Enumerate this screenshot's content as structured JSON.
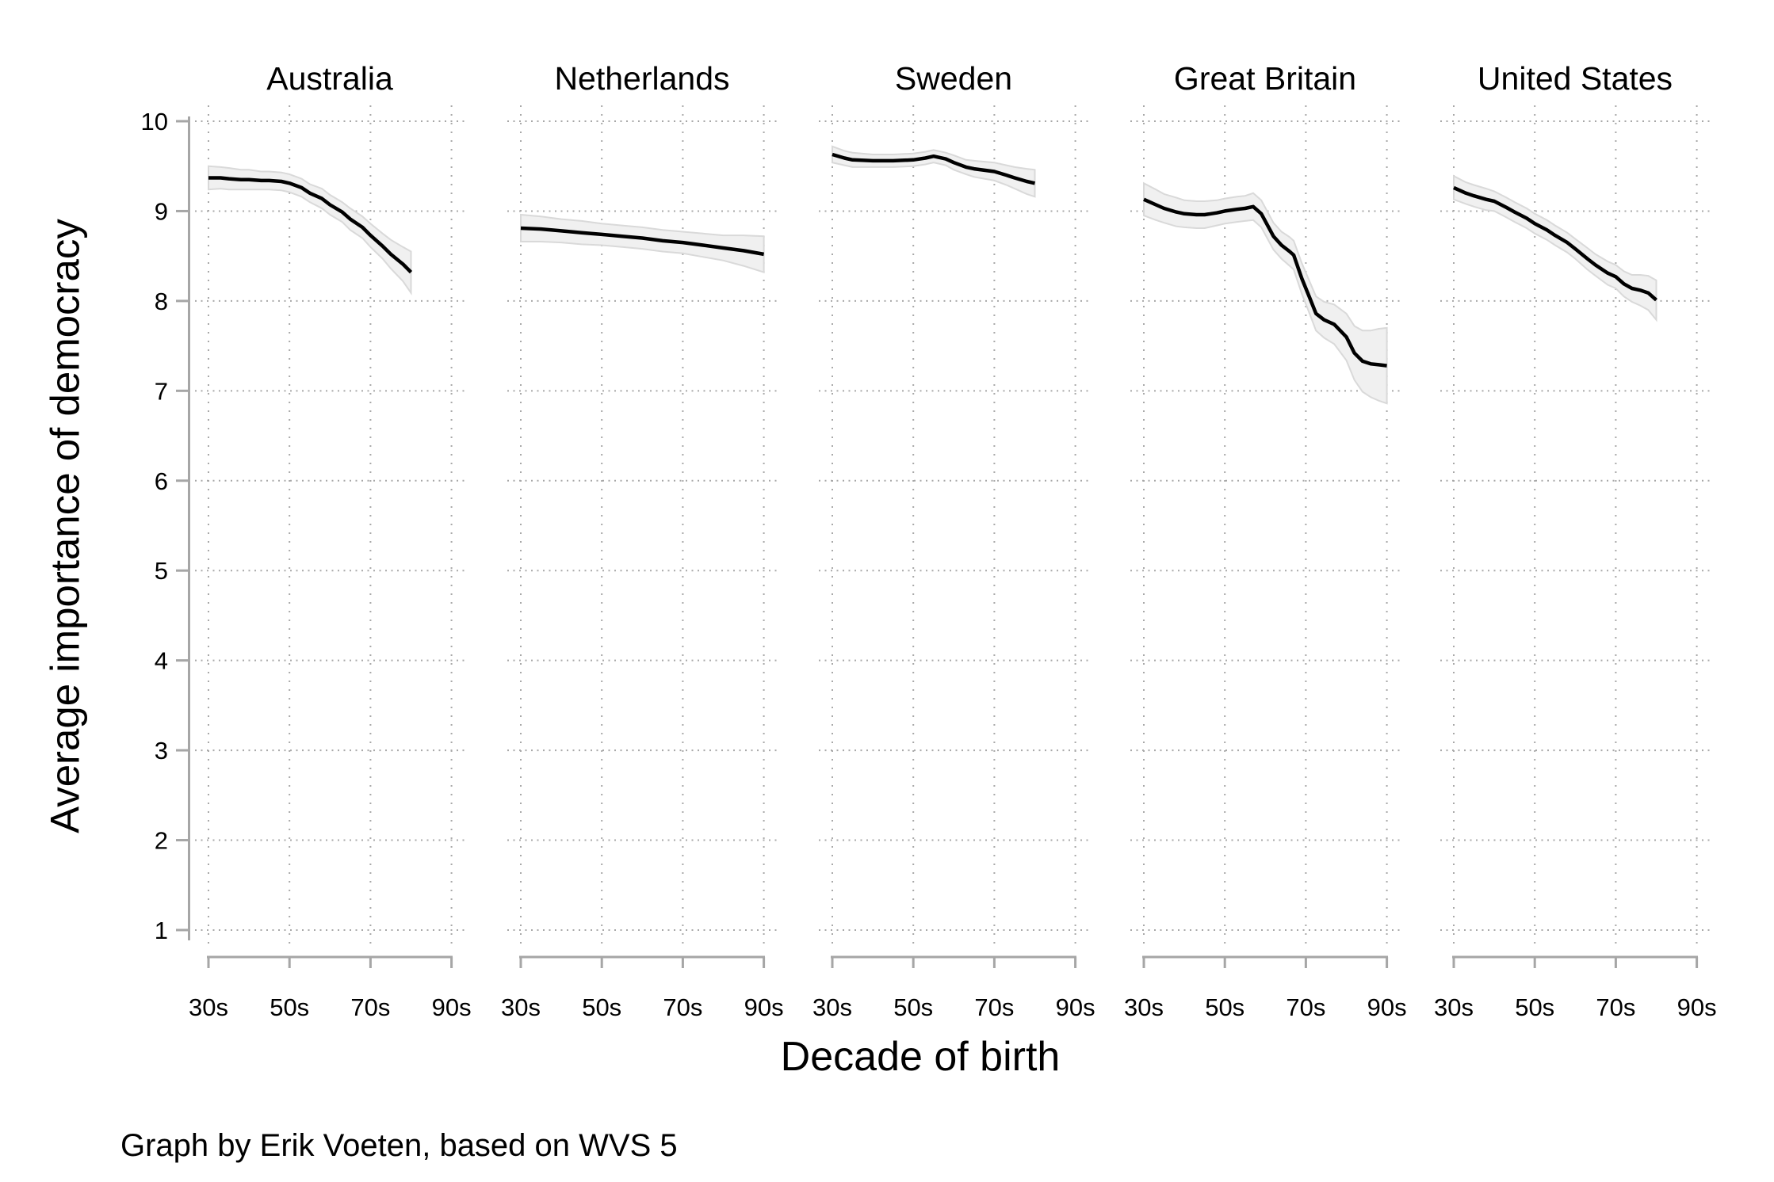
{
  "figure": {
    "y_axis_title": "Average importance of democracy",
    "x_axis_title": "Decade of birth",
    "caption": "Graph by Erik Voeten, based on WVS 5",
    "y_tick_labels": [
      "10",
      "9",
      "8",
      "7",
      "6",
      "5",
      "4",
      "3",
      "2",
      "1"
    ],
    "x_tick_labels": [
      "30s",
      "50s",
      "70s",
      "90s"
    ]
  },
  "colors": {
    "line": "#000000",
    "band_fill": "#f0f0f0",
    "band_stroke": "#d9d9d9",
    "axis": "#a6a6a6",
    "grid": "#a8a8a8",
    "text": "#000000"
  },
  "chart_data": {
    "type": "line",
    "layout_hint": "five small-multiple panels sharing one y axis; dotted grid; gray 95% confidence band around each black line",
    "title": "",
    "xlabel": "Decade of birth",
    "ylabel": "Average importance of democracy",
    "ylim": [
      1,
      10
    ],
    "y_ticks": [
      10,
      9,
      8,
      7,
      6,
      5,
      4,
      3,
      2,
      1
    ],
    "x_ticks": [
      30,
      50,
      70,
      90
    ],
    "x_tick_labels": [
      "30s",
      "50s",
      "70s",
      "90s"
    ],
    "grid": "dotted, horizontal at each integer 1-10, vertical at 30s/50s/70s/90s",
    "point_format": "[decade_of_birth, mean_value, ci_halfwidth]",
    "panels": [
      {
        "title": "Australia",
        "points": [
          [
            30,
            9.37,
            0.13
          ],
          [
            33,
            9.37,
            0.12
          ],
          [
            35,
            9.36,
            0.12
          ],
          [
            38,
            9.35,
            0.11
          ],
          [
            40,
            9.35,
            0.11
          ],
          [
            43,
            9.34,
            0.1
          ],
          [
            45,
            9.34,
            0.1
          ],
          [
            48,
            9.33,
            0.1
          ],
          [
            50,
            9.31,
            0.1
          ],
          [
            53,
            9.26,
            0.1
          ],
          [
            55,
            9.2,
            0.1
          ],
          [
            58,
            9.14,
            0.11
          ],
          [
            60,
            9.07,
            0.11
          ],
          [
            63,
            8.99,
            0.11
          ],
          [
            65,
            8.91,
            0.12
          ],
          [
            68,
            8.82,
            0.12
          ],
          [
            70,
            8.73,
            0.13
          ],
          [
            73,
            8.61,
            0.14
          ],
          [
            75,
            8.52,
            0.16
          ],
          [
            78,
            8.41,
            0.19
          ],
          [
            80,
            8.32,
            0.23
          ]
        ]
      },
      {
        "title": "Netherlands",
        "points": [
          [
            30,
            8.81,
            0.15
          ],
          [
            35,
            8.8,
            0.14
          ],
          [
            40,
            8.78,
            0.13
          ],
          [
            45,
            8.76,
            0.13
          ],
          [
            50,
            8.74,
            0.12
          ],
          [
            55,
            8.72,
            0.12
          ],
          [
            60,
            8.7,
            0.12
          ],
          [
            65,
            8.67,
            0.12
          ],
          [
            70,
            8.65,
            0.12
          ],
          [
            75,
            8.62,
            0.13
          ],
          [
            80,
            8.59,
            0.14
          ],
          [
            85,
            8.56,
            0.17
          ],
          [
            90,
            8.52,
            0.2
          ]
        ]
      },
      {
        "title": "Sweden",
        "points": [
          [
            30,
            9.63,
            0.09
          ],
          [
            33,
            9.59,
            0.08
          ],
          [
            35,
            9.57,
            0.08
          ],
          [
            40,
            9.56,
            0.07
          ],
          [
            45,
            9.56,
            0.07
          ],
          [
            50,
            9.57,
            0.07
          ],
          [
            53,
            9.59,
            0.07
          ],
          [
            55,
            9.61,
            0.07
          ],
          [
            58,
            9.58,
            0.07
          ],
          [
            60,
            9.54,
            0.08
          ],
          [
            63,
            9.49,
            0.08
          ],
          [
            65,
            9.47,
            0.09
          ],
          [
            70,
            9.44,
            0.1
          ],
          [
            73,
            9.4,
            0.11
          ],
          [
            75,
            9.37,
            0.12
          ],
          [
            78,
            9.33,
            0.14
          ],
          [
            80,
            9.31,
            0.15
          ]
        ]
      },
      {
        "title": "Great Britain",
        "points": [
          [
            30,
            9.13,
            0.18
          ],
          [
            33,
            9.07,
            0.17
          ],
          [
            35,
            9.03,
            0.16
          ],
          [
            38,
            8.99,
            0.16
          ],
          [
            40,
            8.97,
            0.15
          ],
          [
            43,
            8.96,
            0.15
          ],
          [
            45,
            8.96,
            0.15
          ],
          [
            48,
            8.98,
            0.14
          ],
          [
            50,
            9.0,
            0.14
          ],
          [
            53,
            9.02,
            0.14
          ],
          [
            55,
            9.03,
            0.14
          ],
          [
            57,
            9.05,
            0.15
          ],
          [
            59,
            8.97,
            0.15
          ],
          [
            62,
            8.72,
            0.15
          ],
          [
            64,
            8.62,
            0.15
          ],
          [
            66,
            8.55,
            0.16
          ],
          [
            67,
            8.51,
            0.16
          ],
          [
            69,
            8.25,
            0.17
          ],
          [
            71,
            8.03,
            0.18
          ],
          [
            72.5,
            7.86,
            0.19
          ],
          [
            74.5,
            7.79,
            0.2
          ],
          [
            77,
            7.74,
            0.22
          ],
          [
            80,
            7.6,
            0.26
          ],
          [
            82,
            7.42,
            0.3
          ],
          [
            84,
            7.33,
            0.34
          ],
          [
            86,
            7.3,
            0.37
          ],
          [
            88,
            7.29,
            0.4
          ],
          [
            90,
            7.28,
            0.42
          ]
        ]
      },
      {
        "title": "United States",
        "points": [
          [
            30,
            9.26,
            0.13
          ],
          [
            33,
            9.2,
            0.12
          ],
          [
            35,
            9.17,
            0.12
          ],
          [
            38,
            9.13,
            0.12
          ],
          [
            40,
            9.11,
            0.11
          ],
          [
            43,
            9.04,
            0.11
          ],
          [
            45,
            8.99,
            0.11
          ],
          [
            48,
            8.92,
            0.11
          ],
          [
            50,
            8.86,
            0.11
          ],
          [
            53,
            8.79,
            0.11
          ],
          [
            55,
            8.73,
            0.11
          ],
          [
            58,
            8.65,
            0.11
          ],
          [
            60,
            8.58,
            0.11
          ],
          [
            63,
            8.47,
            0.12
          ],
          [
            65,
            8.4,
            0.12
          ],
          [
            68,
            8.31,
            0.13
          ],
          [
            70,
            8.27,
            0.13
          ],
          [
            72,
            8.19,
            0.14
          ],
          [
            74,
            8.14,
            0.15
          ],
          [
            76,
            8.12,
            0.17
          ],
          [
            78,
            8.09,
            0.19
          ],
          [
            80,
            8.01,
            0.22
          ]
        ]
      }
    ]
  }
}
